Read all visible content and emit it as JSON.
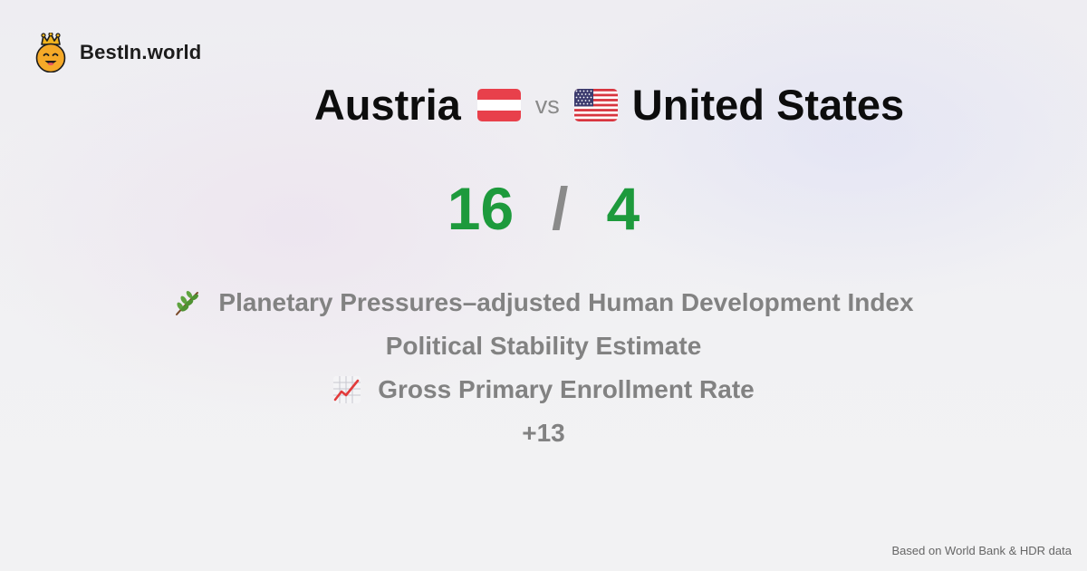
{
  "brand": {
    "name": "BestIn.world",
    "icon": "crowned-smiley-icon"
  },
  "comparison": {
    "left_country": "Austria",
    "left_flag": "austria-flag-icon",
    "vs_label": "vs",
    "right_country": "United States",
    "right_flag": "usa-flag-icon"
  },
  "score": {
    "left": "16",
    "separator": "/",
    "right": "4",
    "color": "#1d9a3c"
  },
  "metrics": [
    {
      "icon": "herb-icon",
      "label": "Planetary Pressures–adjusted Human Development Index"
    },
    {
      "icon": "",
      "label": "Political Stability Estimate"
    },
    {
      "icon": "chart-increasing-icon",
      "label": "Gross Primary Enrollment Rate"
    }
  ],
  "more_label": "+13",
  "footer": {
    "source": "Based on World Bank & HDR data"
  }
}
